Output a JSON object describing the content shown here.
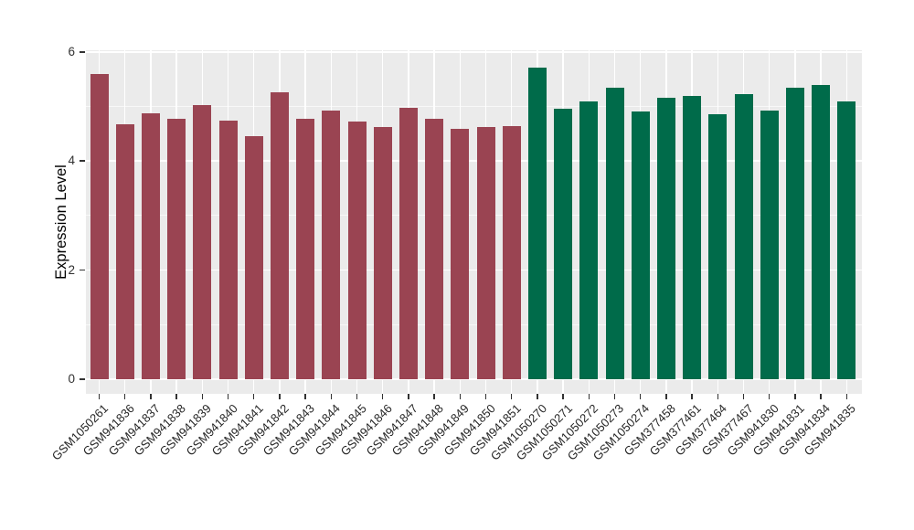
{
  "chart_data": {
    "type": "bar",
    "title": "",
    "ylabel": "Expression Level",
    "xlabel": "",
    "ylim": [
      0,
      6
    ],
    "yticks": [
      0,
      2,
      4,
      6
    ],
    "minor_gridlines": [
      1,
      3,
      5
    ],
    "grid": true,
    "legend": false,
    "panel_background": "#EBEBEB",
    "categories": [
      "GSM1050261",
      "GSM941836",
      "GSM941837",
      "GSM941838",
      "GSM941839",
      "GSM941840",
      "GSM941841",
      "GSM941842",
      "GSM941843",
      "GSM941844",
      "GSM941845",
      "GSM941846",
      "GSM941847",
      "GSM941848",
      "GSM941849",
      "GSM941850",
      "GSM941851",
      "GSM1050270",
      "GSM1050271",
      "GSM1050272",
      "GSM1050273",
      "GSM1050274",
      "GSM377458",
      "GSM377461",
      "GSM377464",
      "GSM377467",
      "GSM941830",
      "GSM941831",
      "GSM941834",
      "GSM941835"
    ],
    "values": [
      5.6,
      4.67,
      4.88,
      4.78,
      5.03,
      4.74,
      4.46,
      5.26,
      4.77,
      4.92,
      4.72,
      4.62,
      4.98,
      4.78,
      4.59,
      4.62,
      4.64,
      5.71,
      4.96,
      5.1,
      5.34,
      4.9,
      5.16,
      5.2,
      4.86,
      5.22,
      4.92,
      5.34,
      5.39,
      5.1
    ],
    "groups": [
      {
        "color": "#9A4452",
        "from": 0,
        "to": 16
      },
      {
        "color": "#006B4A",
        "from": 17,
        "to": 29
      }
    ]
  }
}
